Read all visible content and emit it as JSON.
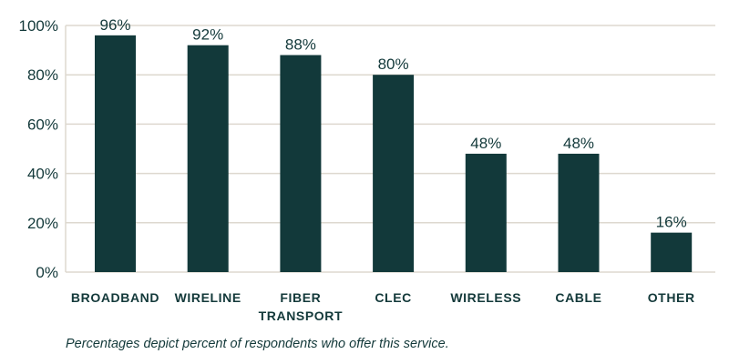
{
  "chart_data": {
    "type": "bar",
    "categories": [
      [
        "BROADBAND"
      ],
      [
        "WIRELINE"
      ],
      [
        "FIBER",
        "TRANSPORT"
      ],
      [
        "CLEC"
      ],
      [
        "WIRELESS"
      ],
      [
        "CABLE"
      ],
      [
        "OTHER"
      ]
    ],
    "values": [
      96,
      92,
      88,
      80,
      48,
      48,
      16
    ],
    "data_labels": [
      "96%",
      "92%",
      "88%",
      "80%",
      "48%",
      "48%",
      "16%"
    ],
    "yticks": [
      0,
      20,
      40,
      60,
      80,
      100
    ],
    "ytick_labels": [
      "0%",
      "20%",
      "40%",
      "60%",
      "80%",
      "100%"
    ],
    "ylim": [
      0,
      100
    ],
    "grid": true,
    "title": "",
    "xlabel": "",
    "ylabel": "",
    "colors": {
      "bar": "#12393a",
      "grid": "#ddd8cf",
      "text": "#13393a"
    }
  },
  "note": "Percentages depict percent of respondents who offer this service."
}
